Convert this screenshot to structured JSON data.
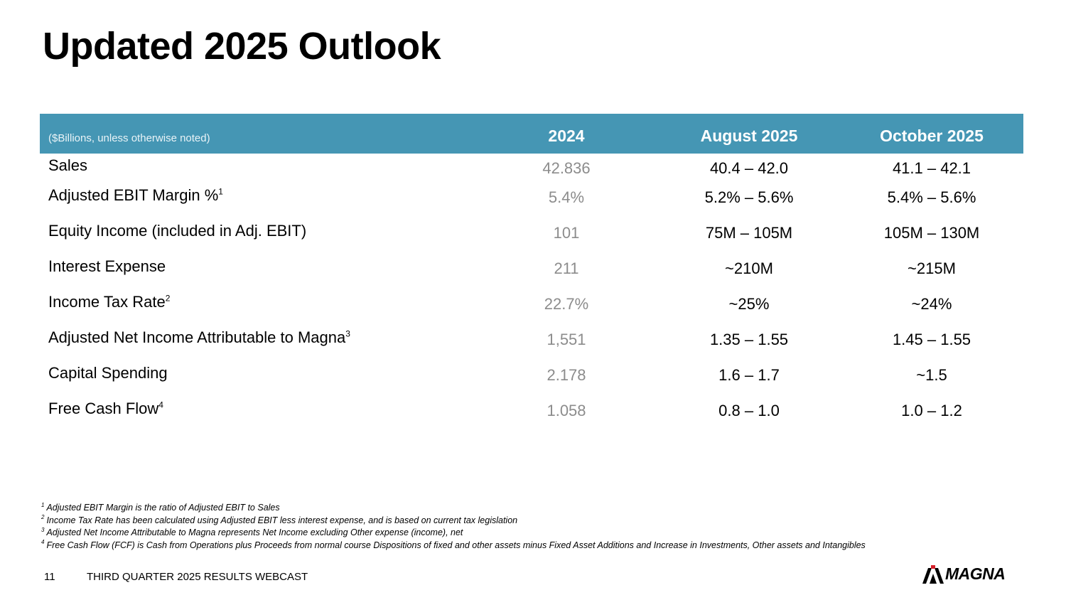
{
  "title": "Updated 2025 Outlook",
  "table": {
    "unit_note": "($Billions, unless otherwise noted)",
    "columns": [
      "2024",
      "August 2025",
      "October 2025"
    ],
    "rows": [
      {
        "label": "Sales",
        "sup": "",
        "v2024": "42.836",
        "aug2025": "40.4 – 42.0",
        "oct2025": "41.1 – 42.1"
      },
      {
        "label": "Adjusted EBIT Margin %",
        "sup": "1",
        "v2024": "5.4%",
        "aug2025": "5.2% – 5.6%",
        "oct2025": "5.4% – 5.6%"
      },
      {
        "label": "Equity Income (included in Adj. EBIT)",
        "sup": "",
        "v2024": "101",
        "aug2025": "75M – 105M",
        "oct2025": "105M – 130M"
      },
      {
        "label": "Interest Expense",
        "sup": "",
        "v2024": "211",
        "aug2025": "~210M",
        "oct2025": "~215M"
      },
      {
        "label": "Income Tax Rate",
        "sup": "2",
        "v2024": "22.7%",
        "aug2025": "~25%",
        "oct2025": "~24%"
      },
      {
        "label": "Adjusted Net Income Attributable to Magna",
        "sup": "3",
        "v2024": "1,551",
        "aug2025": "1.35 – 1.55",
        "oct2025": "1.45 – 1.55"
      },
      {
        "label": "Capital Spending",
        "sup": "",
        "v2024": "2.178",
        "aug2025": "1.6 – 1.7",
        "oct2025": "~1.5"
      },
      {
        "label": "Free Cash Flow",
        "sup": "4",
        "v2024": "1.058",
        "aug2025": "0.8 – 1.0",
        "oct2025": "1.0 – 1.2"
      }
    ]
  },
  "footnotes": [
    {
      "num": "1",
      "text": "Adjusted EBIT Margin is the ratio of Adjusted EBIT to Sales"
    },
    {
      "num": "2",
      "text": "Income Tax Rate has been calculated using Adjusted EBIT less interest expense, and is based on current tax legislation"
    },
    {
      "num": "3",
      "text": "Adjusted Net Income Attributable to Magna represents Net Income excluding Other expense (income), net"
    },
    {
      "num": "4",
      "text": "Free Cash Flow (FCF) is Cash from Operations plus Proceeds from normal course Dispositions of fixed and other assets minus Fixed Asset Additions and Increase in Investments, Other assets and Intangibles"
    }
  ],
  "footer": {
    "page_number": "11",
    "webcast_title": "THIRD QUARTER 2025 RESULTS WEBCAST",
    "logo_text": "MAGNA"
  },
  "colors": {
    "header_bg": "#4596b4",
    "prior_year_text": "#8c8c8c"
  }
}
